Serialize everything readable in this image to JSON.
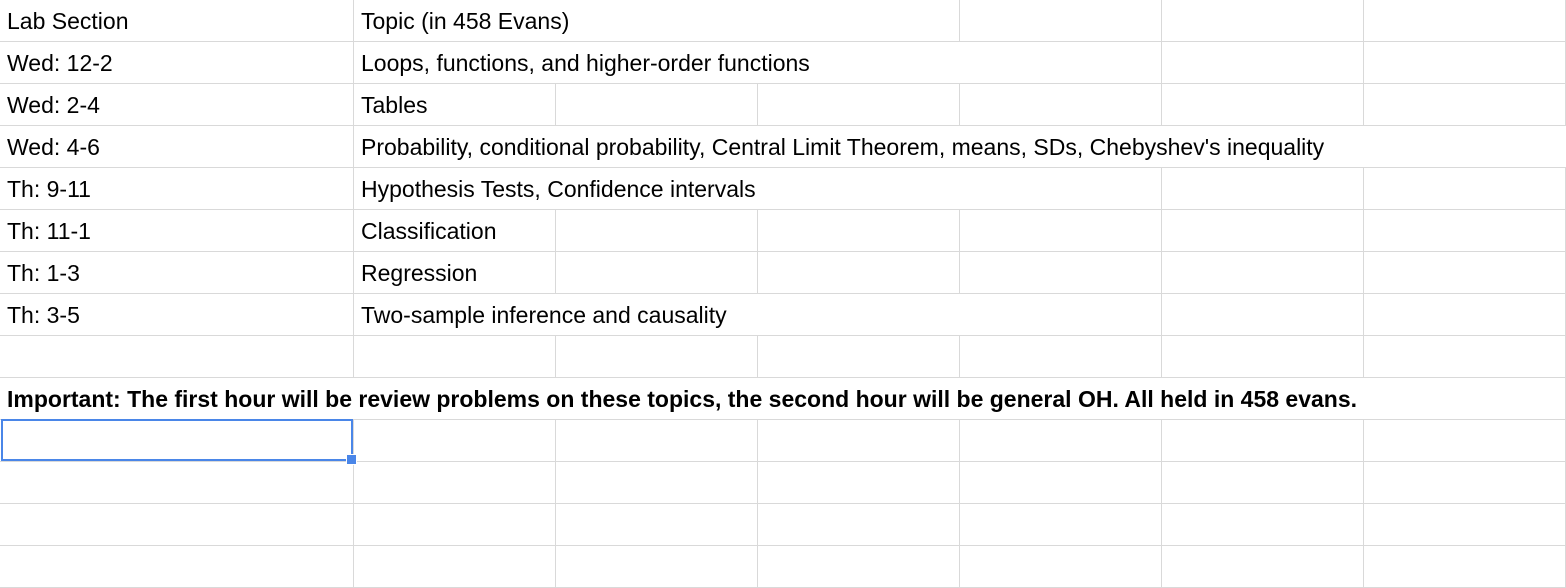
{
  "sheet": {
    "header": {
      "col_a": "Lab Section",
      "col_b": "Topic (in 458 Evans)"
    },
    "rows": [
      {
        "section": "Wed: 12-2",
        "topic": "Loops, functions, and higher-order functions"
      },
      {
        "section": "Wed: 2-4",
        "topic": "Tables"
      },
      {
        "section": "Wed: 4-6",
        "topic": "Probability, conditional probability, Central Limit Theorem, means, SDs, Chebyshev's inequality"
      },
      {
        "section": "Th: 9-11",
        "topic": "Hypothesis Tests, Confidence intervals"
      },
      {
        "section": "Th: 11-1",
        "topic": "Classification"
      },
      {
        "section": "Th: 1-3",
        "topic": "Regression"
      },
      {
        "section": "Th: 3-5",
        "topic": "Two-sample inference and causality"
      }
    ],
    "note": "Important: The first hour will be review problems on these topics, the second hour will be general OH. All held in 458 evans."
  },
  "colors": {
    "grid_line": "#d9d9d9",
    "selection": "#4a86e8"
  }
}
